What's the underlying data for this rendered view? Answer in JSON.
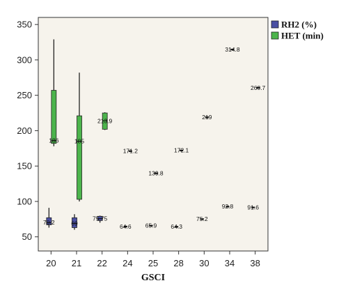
{
  "chart_data": {
    "type": "boxplot",
    "xlabel": "GSCI",
    "ylabel": "",
    "categories": [
      "20",
      "21",
      "22",
      "24",
      "25",
      "28",
      "30",
      "34",
      "38"
    ],
    "ylim": [
      30,
      360
    ],
    "yticks": [
      50,
      100,
      150,
      200,
      250,
      300,
      350
    ],
    "grid": false,
    "legend_position": "top-right",
    "series": [
      {
        "name": "RH2 (%)",
        "color": "#4a4fa3",
        "boxes": [
          {
            "category": "20",
            "min": 63,
            "q1": 67,
            "median": 70.2,
            "q3": 77,
            "max": 91,
            "label": "70.2"
          },
          {
            "category": "21",
            "min": 60,
            "q1": 63,
            "median": 69,
            "q3": 77,
            "max": 82,
            "label": "69"
          },
          {
            "category": "22",
            "min": 70,
            "q1": 73,
            "median": 75.75,
            "q3": 79,
            "max": 80,
            "label": "75.75"
          },
          {
            "category": "24",
            "min": 64.6,
            "q1": 64.6,
            "median": 64.6,
            "q3": 64.6,
            "max": 64.6,
            "label": "64.6"
          },
          {
            "category": "25",
            "min": 65.9,
            "q1": 65.9,
            "median": 65.9,
            "q3": 65.9,
            "max": 65.9,
            "label": "65.9"
          },
          {
            "category": "28",
            "min": 64.3,
            "q1": 64.3,
            "median": 64.3,
            "q3": 64.3,
            "max": 64.3,
            "label": "64.3"
          },
          {
            "category": "30",
            "min": 75.2,
            "q1": 75.2,
            "median": 75.2,
            "q3": 75.2,
            "max": 75.2,
            "label": "75.2"
          },
          {
            "category": "34",
            "min": 92.8,
            "q1": 92.8,
            "median": 92.8,
            "q3": 92.8,
            "max": 92.8,
            "label": "92.8"
          },
          {
            "category": "38",
            "min": 91.6,
            "q1": 91.6,
            "median": 91.6,
            "q3": 91.6,
            "max": 91.6,
            "label": "91.6"
          }
        ]
      },
      {
        "name": "HET (min)",
        "color": "#4cb44c",
        "boxes": [
          {
            "category": "20",
            "min": 178,
            "q1": 182,
            "median": 186,
            "q3": 257,
            "max": 329,
            "label": "186"
          },
          {
            "category": "21",
            "min": 100,
            "q1": 103,
            "median": 185,
            "q3": 221,
            "max": 282,
            "label": "185"
          },
          {
            "category": "22",
            "min": 201,
            "q1": 202,
            "median": 213.9,
            "q3": 225,
            "max": 226,
            "label": "213.9"
          },
          {
            "category": "24",
            "min": 171.2,
            "q1": 171.2,
            "median": 171.2,
            "q3": 171.2,
            "max": 171.2,
            "label": "171.2"
          },
          {
            "category": "25",
            "min": 139.8,
            "q1": 139.8,
            "median": 139.8,
            "q3": 139.8,
            "max": 139.8,
            "label": "139.8"
          },
          {
            "category": "28",
            "min": 172.1,
            "q1": 172.1,
            "median": 172.1,
            "q3": 172.1,
            "max": 172.1,
            "label": "172.1"
          },
          {
            "category": "30",
            "min": 219,
            "q1": 219,
            "median": 219,
            "q3": 219,
            "max": 219,
            "label": "219"
          },
          {
            "category": "34",
            "min": 314.8,
            "q1": 314.8,
            "median": 314.8,
            "q3": 314.8,
            "max": 314.8,
            "label": "314.8"
          },
          {
            "category": "38",
            "min": 260.7,
            "q1": 260.7,
            "median": 260.7,
            "q3": 260.7,
            "max": 260.7,
            "label": "260.7"
          }
        ]
      }
    ]
  }
}
